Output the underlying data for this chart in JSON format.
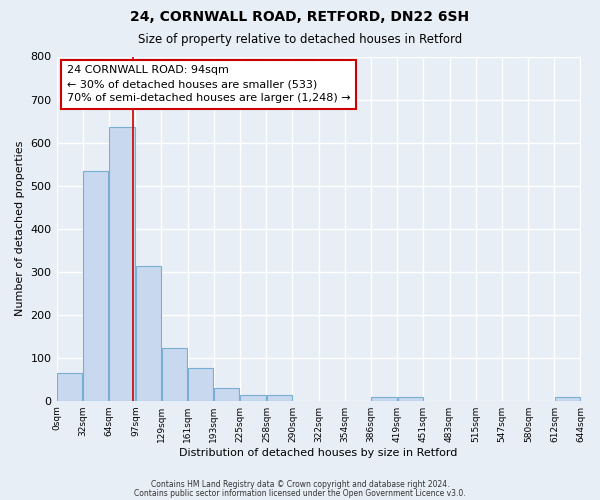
{
  "title": "24, CORNWALL ROAD, RETFORD, DN22 6SH",
  "subtitle": "Size of property relative to detached houses in Retford",
  "xlabel": "Distribution of detached houses by size in Retford",
  "ylabel": "Number of detached properties",
  "bar_left_edges": [
    0,
    32,
    64,
    97,
    129,
    161,
    193,
    225,
    258,
    290,
    322,
    354,
    386,
    419,
    451,
    483,
    515,
    547,
    580,
    612
  ],
  "bar_widths": [
    32,
    32,
    33,
    32,
    32,
    32,
    32,
    33,
    32,
    32,
    32,
    32,
    33,
    32,
    32,
    32,
    32,
    33,
    32,
    32
  ],
  "bar_heights": [
    65,
    533,
    635,
    313,
    122,
    76,
    30,
    13,
    13,
    0,
    0,
    0,
    8,
    8,
    0,
    0,
    0,
    0,
    0,
    8
  ],
  "bar_color": "#c8d8ee",
  "bar_edge_color": "#7aafd4",
  "x_tick_labels": [
    "0sqm",
    "32sqm",
    "64sqm",
    "97sqm",
    "129sqm",
    "161sqm",
    "193sqm",
    "225sqm",
    "258sqm",
    "290sqm",
    "322sqm",
    "354sqm",
    "386sqm",
    "419sqm",
    "451sqm",
    "483sqm",
    "515sqm",
    "547sqm",
    "580sqm",
    "612sqm",
    "644sqm"
  ],
  "x_tick_positions": [
    0,
    32,
    64,
    97,
    129,
    161,
    193,
    225,
    258,
    290,
    322,
    354,
    386,
    419,
    451,
    483,
    515,
    547,
    580,
    612,
    644
  ],
  "ylim": [
    0,
    800
  ],
  "xlim": [
    0,
    644
  ],
  "yticks": [
    0,
    100,
    200,
    300,
    400,
    500,
    600,
    700,
    800
  ],
  "vline_x": 94,
  "vline_color": "#cc0000",
  "annotation_line1": "24 CORNWALL ROAD: 94sqm",
  "annotation_line2": "← 30% of detached houses are smaller (533)",
  "annotation_line3": "70% of semi-detached houses are larger (1,248) →",
  "annotation_box_color": "#ffffff",
  "annotation_box_edge": "#cc0000",
  "footer1": "Contains HM Land Registry data © Crown copyright and database right 2024.",
  "footer2": "Contains public sector information licensed under the Open Government Licence v3.0.",
  "bg_color": "#e8eef5",
  "grid_color": "#ffffff"
}
